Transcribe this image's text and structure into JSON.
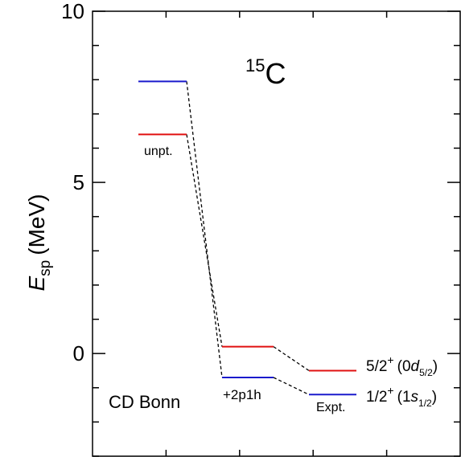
{
  "chart_data": {
    "type": "level-scheme",
    "title_mass": "15",
    "title_element": "C",
    "ylabel": {
      "symbol": "E",
      "subscript": "sp",
      "unit": "(MeV)"
    },
    "ylim": [
      -3,
      10
    ],
    "yticks": [
      0,
      5,
      10
    ],
    "yticks_labels": [
      "0",
      "5",
      "10"
    ],
    "y_minor_step": 1,
    "x_tick_count": 4,
    "label_cd_bonn": "CD Bonn",
    "colors": {
      "d52": "#e01010",
      "s12": "#1a1acc",
      "link": "#000000",
      "axis": "#000000"
    },
    "columns": [
      {
        "name": "unpt.",
        "levels": [
          {
            "state": "d52",
            "energy": 6.4
          },
          {
            "state": "s12",
            "energy": 7.95
          }
        ]
      },
      {
        "name": "+2p1h",
        "levels": [
          {
            "state": "d52",
            "energy": 0.2
          },
          {
            "state": "s12",
            "energy": -0.7
          }
        ]
      },
      {
        "name": "Expt.",
        "levels": [
          {
            "state": "d52",
            "energy": -0.5
          },
          {
            "state": "s12",
            "energy": -1.2
          }
        ]
      }
    ],
    "state_labels": {
      "d52": {
        "jpi": "5/2",
        "parity": "+",
        "orbit_n": "0",
        "orbit_l": "d",
        "orbit_j": "5/2"
      },
      "s12": {
        "jpi": "1/2",
        "parity": "+",
        "orbit_n": "1",
        "orbit_l": "s",
        "orbit_j": "1/2"
      }
    }
  }
}
